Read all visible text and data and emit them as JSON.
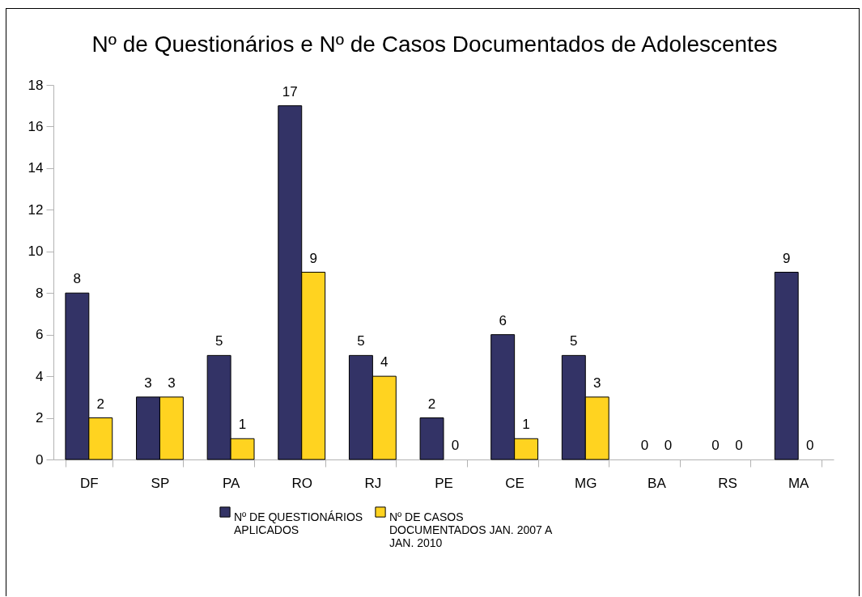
{
  "chart_data": {
    "type": "bar",
    "title": "Nº de Questionários e Nº de Casos Documentados de Adolescentes",
    "categories": [
      "DF",
      "SP",
      "PA",
      "RO",
      "RJ",
      "PE",
      "CE",
      "MG",
      "BA",
      "RS",
      "MA"
    ],
    "series": [
      {
        "name": "Nº DE QUESTIONÁRIOS APLICADOS",
        "color": "#333366",
        "values": [
          8,
          3,
          5,
          17,
          5,
          2,
          6,
          5,
          0,
          0,
          9
        ]
      },
      {
        "name": "Nº DE CASOS DOCUMENTADOS JAN. 2007 A JAN. 2010",
        "color": "#ffd320",
        "values": [
          2,
          3,
          1,
          9,
          4,
          0,
          1,
          3,
          0,
          0,
          0
        ]
      }
    ],
    "ylim": [
      0,
      18
    ],
    "yticks": [
      0,
      2,
      4,
      6,
      8,
      10,
      12,
      14,
      16,
      18
    ],
    "grid": false,
    "legend": "bottom",
    "data_labels": true
  }
}
